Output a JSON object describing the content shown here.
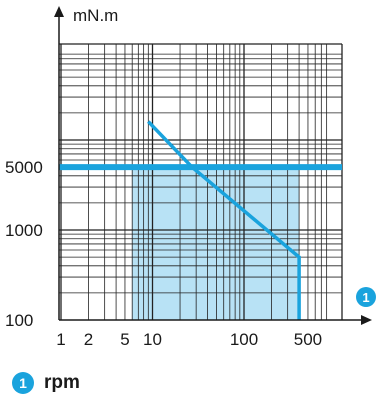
{
  "chart_data": {
    "type": "area",
    "x_scale": "log",
    "y_scale": "log",
    "xlim": [
      1,
      800
    ],
    "ylim": [
      100,
      30000
    ],
    "x_tick_labels": [
      {
        "value": 1,
        "label": "1"
      },
      {
        "value": 2,
        "label": "2"
      },
      {
        "value": 5,
        "label": "5"
      },
      {
        "value": 10,
        "label": "10"
      },
      {
        "value": 100,
        "label": "100"
      },
      {
        "value": 500,
        "label": "500"
      }
    ],
    "y_tick_labels": [
      {
        "value": 100,
        "label": "100"
      },
      {
        "value": 1000,
        "label": "1000"
      },
      {
        "value": 5000,
        "label": "5000"
      }
    ],
    "ylabel": "mN.m",
    "x_axis_marker": "1",
    "grid": true,
    "line": {
      "x": [
        9,
        27,
        400,
        400
      ],
      "y": [
        16000,
        5000,
        500,
        100
      ]
    },
    "reference_line_y": 5000,
    "shaded_region": {
      "x_from": 6,
      "x_to": 400
    }
  },
  "legend": {
    "marker": "1",
    "label": "rpm"
  },
  "colors": {
    "accent": "#1aa3dd",
    "fill": "#b8e2f5",
    "grid": "#222222",
    "text": "#1a1a1a"
  }
}
